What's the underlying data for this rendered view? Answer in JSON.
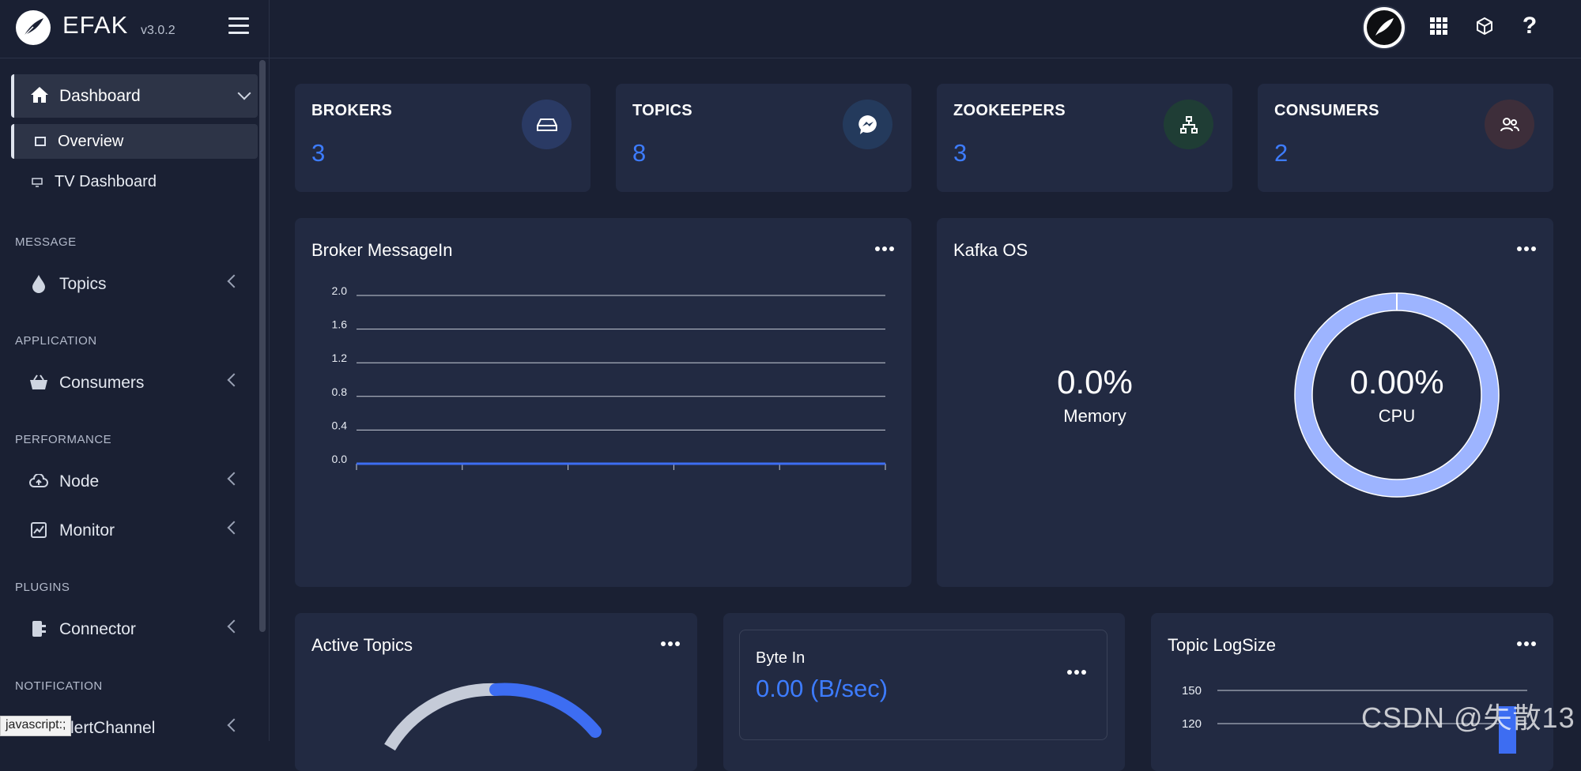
{
  "brand": {
    "name": "EFAK",
    "version": "v3.0.2"
  },
  "header": {
    "icons": [
      "user-avatar",
      "grid-icon",
      "cube-icon",
      "help-icon"
    ],
    "help_label": "?"
  },
  "sidebar": {
    "dashboard": {
      "label": "Dashboard"
    },
    "sub_items": [
      {
        "label": "Overview",
        "active": true
      },
      {
        "label": "TV Dashboard",
        "active": false
      }
    ],
    "sections": [
      {
        "header": "MESSAGE",
        "items": [
          {
            "label": "Topics",
            "icon": "drop-icon"
          }
        ]
      },
      {
        "header": "APPLICATION",
        "items": [
          {
            "label": "Consumers",
            "icon": "basket-icon"
          }
        ]
      },
      {
        "header": "PERFORMANCE",
        "items": [
          {
            "label": "Node",
            "icon": "cloud-upload-icon"
          },
          {
            "label": "Monitor",
            "icon": "chart-box-icon"
          }
        ]
      },
      {
        "header": "PLUGINS",
        "items": [
          {
            "label": "Connector",
            "icon": "connector-icon"
          }
        ]
      },
      {
        "header": "NOTIFICATION",
        "items": [
          {
            "label": "AlertChannel",
            "icon": "bell-icon"
          }
        ]
      }
    ],
    "status_tip": "javascript:;"
  },
  "stats": [
    {
      "title": "BROKERS",
      "value": "3",
      "icon": "hard-drive-icon",
      "icon_bg": "#2a3a64"
    },
    {
      "title": "TOPICS",
      "value": "8",
      "icon": "messenger-icon",
      "icon_bg": "#243a5c"
    },
    {
      "title": "ZOOKEEPERS",
      "value": "3",
      "icon": "sitemap-icon",
      "icon_bg": "#1f3d35"
    },
    {
      "title": "CONSUMERS",
      "value": "2",
      "icon": "users-icon",
      "icon_bg": "#3d2e3a"
    }
  ],
  "broker_messagein": {
    "title": "Broker MessageIn",
    "chart_data": {
      "type": "line",
      "y_ticks": [
        "2.0",
        "1.6",
        "1.2",
        "0.8",
        "0.4",
        "0.0"
      ],
      "ylim": [
        0,
        2.0
      ],
      "series": [
        {
          "values": [
            0,
            0,
            0,
            0,
            0,
            0
          ]
        }
      ],
      "line_color": "#3d6df2"
    }
  },
  "kafka_os": {
    "title": "Kafka OS",
    "memory": {
      "value": "0.0%",
      "label": "Memory"
    },
    "cpu": {
      "value": "0.00%",
      "label": "CPU",
      "ring_color": "#9db4ff"
    }
  },
  "active_topics": {
    "title": "Active Topics"
  },
  "byte_in": {
    "title": "Byte In",
    "value": "0.00 (B/sec)"
  },
  "topic_logsize": {
    "title": "Topic LogSize",
    "y_ticks": [
      "150",
      "120"
    ]
  },
  "accent": "#3d7cff",
  "watermark": "CSDN @失散13"
}
